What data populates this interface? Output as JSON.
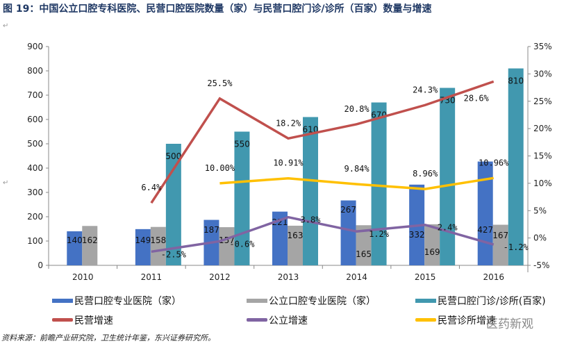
{
  "title": "图 19：中国公立口腔专科医院、民营口腔医院数量（家）与民营口腔门诊/诊所（百家）数量与增速",
  "source": "资料来源：前瞻产业研究院，卫生统计年鉴，东兴证券研究所。",
  "watermark": "医药新观",
  "chart_data": {
    "type": "bar+line",
    "categories": [
      "2010",
      "2011",
      "2012",
      "2013",
      "2014",
      "2015",
      "2016"
    ],
    "y_left": {
      "range": [
        0,
        900
      ],
      "ticks": [
        "0",
        "100",
        "200",
        "300",
        "400",
        "500",
        "600",
        "700",
        "800",
        "900"
      ]
    },
    "y_right": {
      "range": [
        -5,
        35
      ],
      "ticks": [
        "-5%",
        "0%",
        "5%",
        "10%",
        "15%",
        "20%",
        "25%",
        "30%",
        "35%"
      ]
    },
    "legend_position": "bottom",
    "bar_series": [
      {
        "name": "民营口腔专业医院（家）",
        "color": "#4472c4",
        "values": [
          140,
          149,
          187,
          221,
          267,
          332,
          427
        ],
        "labels": [
          "140",
          "149",
          "187",
          "221",
          "267",
          "332",
          "427"
        ]
      },
      {
        "name": "公立口腔专业医院（家）",
        "color": "#a5a5a5",
        "values": [
          162,
          158,
          157,
          163,
          165,
          169,
          167
        ],
        "labels": [
          "162",
          "158",
          "157",
          "163",
          "165",
          "169",
          "167"
        ]
      },
      {
        "name": "民营口腔门诊/诊所(百家)",
        "color": "#4198af",
        "values": [
          null,
          500,
          550,
          610,
          670,
          730,
          810
        ],
        "labels": [
          "",
          "500",
          "550",
          "610",
          "670",
          "730",
          "810"
        ]
      }
    ],
    "line_series": [
      {
        "name": "民营增速",
        "color": "#c0504d",
        "values": [
          null,
          6.4,
          25.5,
          18.2,
          20.8,
          24.3,
          28.6
        ],
        "labels": [
          "",
          "6.4%",
          "25.5%",
          "18.2%",
          "20.8%",
          "24.3%",
          "28.6%"
        ]
      },
      {
        "name": "公立增速",
        "color": "#8064a2",
        "values": [
          null,
          -2.5,
          -0.6,
          3.8,
          1.2,
          2.4,
          -1.2
        ],
        "labels": [
          "",
          "-2.5%",
          "-0.6%",
          "3.8%",
          "1.2%",
          "2.4%",
          "-1.2%"
        ]
      },
      {
        "name": "民营诊所增速",
        "color": "#ffc000",
        "values": [
          null,
          null,
          10.0,
          10.91,
          9.84,
          8.96,
          10.96
        ],
        "labels": [
          "",
          "",
          "10.00%",
          "10.91%",
          "9.84%",
          "8.96%",
          "10.96%"
        ]
      }
    ]
  }
}
